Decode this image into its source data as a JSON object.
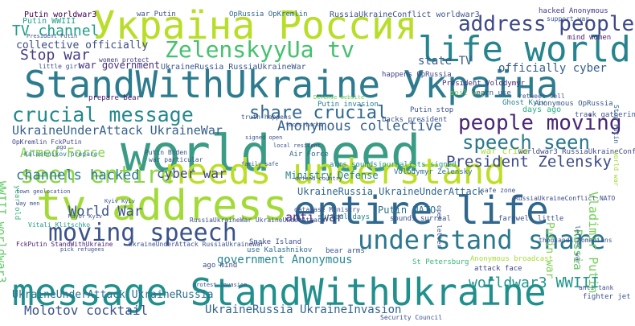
{
  "words": [
    {
      "text": "world need",
      "color": "#3b9c86"
    },
    {
      "text": "message StandWithUkraine",
      "color": "#21908d"
    },
    {
      "text": "StandWithUkraine Україна",
      "color": "#2c7b8e"
    },
    {
      "text": "needs understand",
      "color": "#bdde26"
    },
    {
      "text": "entire life",
      "color": "#30678d"
    },
    {
      "text": "tv address",
      "color": "#a2da37"
    },
    {
      "text": "Україна Россия",
      "color": "#b8de29"
    },
    {
      "text": "life world",
      "color": "#25848e"
    },
    {
      "text": "moving speech",
      "color": "#3b528b"
    },
    {
      "text": "understand share",
      "color": "#2a778e"
    },
    {
      "text": "ZelenskyyUa tv",
      "color": "#46c06f"
    },
    {
      "text": "address people",
      "color": "#3e4989"
    },
    {
      "text": "crucial message",
      "color": "#23888e"
    },
    {
      "text": "people moving",
      "color": "#482576"
    },
    {
      "text": "share crucial",
      "color": "#31688e"
    },
    {
      "text": "speech seen",
      "color": "#2a788e"
    },
    {
      "text": "seen entire",
      "color": "#8ed645"
    },
    {
      "text": "Anonymous collective",
      "color": "#34608d"
    },
    {
      "text": "President Zelensky",
      "color": "#3e4c8a"
    },
    {
      "text": "Vladimir Putin",
      "color": "#73d056"
    },
    {
      "text": "Stop war",
      "color": "#443b84"
    },
    {
      "text": "TV channel",
      "color": "#1f9e89"
    },
    {
      "text": "channels hacked",
      "color": "#2a788e"
    },
    {
      "text": "cyber war",
      "color": "#3f4889"
    },
    {
      "text": "Armed Force",
      "color": "#84d44b"
    },
    {
      "text": "UkraineUnderAttack UkraineWar",
      "color": "#355f8d"
    },
    {
      "text": "UkraineRussia UkraineUnderAttack",
      "color": "#31688e"
    },
    {
      "text": "World War",
      "color": "#3a548c"
    },
    {
      "text": "anti war",
      "color": "#472d7b"
    },
    {
      "text": "state TV",
      "color": "#38588c"
    },
    {
      "text": "Ministry Defense",
      "color": "#26818e"
    },
    {
      "text": "worldwar3 WWIII",
      "color": "#1f958b"
    },
    {
      "text": "Molotov cocktail",
      "color": "#3b528b"
    },
    {
      "text": "UkraineRussia UkraineInvasion",
      "color": "#32648e"
    },
    {
      "text": "UkraineUnderAttack UkraineRussia",
      "color": "#2d718e"
    },
    {
      "text": "collective officially",
      "color": "#3d4d8a"
    },
    {
      "text": "officially cyber",
      "color": "#355e8d"
    },
    {
      "text": "government Anonymous",
      "color": "#24868e"
    },
    {
      "text": "Putin NATO",
      "color": "#2d708e"
    },
    {
      "text": "Putin war",
      "color": "#7ad151"
    },
    {
      "text": "WWIII worldwar3",
      "color": "#5ec962"
    },
    {
      "text": "war government",
      "color": "#46307e"
    },
    {
      "text": "mind women",
      "color": "#481b6d"
    },
    {
      "text": "Russia",
      "color": "#63cb5f"
    },
    {
      "text": "Putin WWIII",
      "color": "#1fa187"
    },
    {
      "text": "war Putin",
      "color": "#3c4f8a"
    },
    {
      "text": "Putin worldwar3",
      "color": "#440154"
    },
    {
      "text": "OpRussia OpKremlin",
      "color": "#31688e"
    },
    {
      "text": "RussiaUkraineConflict worldwar3",
      "color": "#3b528b"
    },
    {
      "text": "hacked Anonymous",
      "color": "#443983"
    },
    {
      "text": "UkraineRussia RussiaUkraineWar",
      "color": "#39568c"
    },
    {
      "text": "President Volodymyr",
      "color": "#482878"
    },
    {
      "text": "happens OpRussia",
      "color": "#414487"
    },
    {
      "text": "soil way",
      "color": "#7fd34e"
    },
    {
      "text": "prepare bear",
      "color": "#48186a"
    },
    {
      "text": "Defense website",
      "color": "#6ccd5a"
    },
    {
      "text": "Putin invasion",
      "color": "#287c8e"
    },
    {
      "text": "Ghost Kyiv",
      "color": "#277f8e"
    },
    {
      "text": "days ago",
      "color": "#29af7f"
    },
    {
      "text": "Anonymous OpRussia",
      "color": "#38598c"
    },
    {
      "text": "track gatherings",
      "color": "#3b528b"
    },
    {
      "text": "war crime",
      "color": "#a8db34"
    },
    {
      "text": "worldwar3 RussiaUkraineConflict",
      "color": "#3f4788"
    },
    {
      "text": "Kalashnikov prepare",
      "color": "#2b748e"
    },
    {
      "text": "OpKremlin FckPutin",
      "color": "#404588"
    },
    {
      "text": "Air Force",
      "color": "#33638d"
    },
    {
      "text": "family safe",
      "color": "#3a538b"
    },
    {
      "text": "arms sounds",
      "color": "#24878e"
    },
    {
      "text": "defend country",
      "color": "#3c508b"
    },
    {
      "text": "journalists signed",
      "color": "#1f9a8a"
    },
    {
      "text": "Volodymyr Zelensky",
      "color": "#2f6c8e"
    },
    {
      "text": "Snake Island",
      "color": "#3d4e8a"
    },
    {
      "text": "use Kalashnikov",
      "color": "#2e6f8e"
    },
    {
      "text": "bear arms",
      "color": "#39558c"
    },
    {
      "text": "surreal days",
      "color": "#25858e"
    },
    {
      "text": "sounds surreal",
      "color": "#3b518b"
    },
    {
      "text": "RussiaUkraineConflict NATO",
      "color": "#3e4a89"
    },
    {
      "text": "RussiaUkraineWar UkraineUnderAttack",
      "color": "#3d4e8a"
    },
    {
      "text": "UkraineUnderAttack RussiaUkraineWar",
      "color": "#3b528b"
    },
    {
      "text": "FckPutin StandWithUkraine",
      "color": "#481f70"
    },
    {
      "text": "Vitali Klitschko",
      "color": "#1e9c89"
    },
    {
      "text": "Mayor Kyiv",
      "color": "#38588c"
    },
    {
      "text": "ago mind",
      "color": "#3e4a89"
    },
    {
      "text": "Anonymous broadcast",
      "color": "#a5db36"
    },
    {
      "text": "attack face",
      "color": "#3e4989"
    },
    {
      "text": "St Petersburg",
      "color": "#35b779"
    },
    {
      "text": "anti tank",
      "color": "#3a548c"
    },
    {
      "text": "fighter jet",
      "color": "#3a548c"
    },
    {
      "text": "letter war",
      "color": "#39568c"
    },
    {
      "text": "little girl",
      "color": "#3c4f8a"
    },
    {
      "text": "women protect",
      "color": "#424086"
    },
    {
      "text": "Stop Putin",
      "color": "#32658e"
    },
    {
      "text": "world war",
      "color": "#a2da37"
    },
    {
      "text": "year old",
      "color": "#35b779"
    },
    {
      "text": "ago",
      "color": "#3b528b"
    },
    {
      "text": "way men",
      "color": "#3b528b"
    },
    {
      "text": "safe zone",
      "color": "#3b528b"
    },
    {
      "text": "learn use",
      "color": "#3b528b"
    },
    {
      "text": "backs president",
      "color": "#3b528b"
    },
    {
      "text": "faces backs",
      "color": "#3b528b"
    },
    {
      "text": "truth happens",
      "color": "#3b528b"
    },
    {
      "text": "open letter",
      "color": "#3b528b"
    },
    {
      "text": "Kyiv Kyiv",
      "color": "#3b528b"
    },
    {
      "text": "town geolocation",
      "color": "#3b528b"
    },
    {
      "text": "database Ministry",
      "color": "#3b528b"
    },
    {
      "text": "pick refugees",
      "color": "#3b528b"
    },
    {
      "text": "protest invasion",
      "color": "#3b528b"
    },
    {
      "text": "thousands Romanians",
      "color": "#3b528b"
    },
    {
      "text": "farewell little",
      "color": "#3b528b"
    },
    {
      "text": "retweet tell",
      "color": "#3b528b"
    },
    {
      "text": "local resident",
      "color": "#3b528b"
    },
    {
      "text": "Putin Biden",
      "color": "#3b528b"
    },
    {
      "text": "war particular",
      "color": "#3b528b"
    },
    {
      "text": "signed open",
      "color": "#3b528b"
    },
    {
      "text": "Security Council",
      "color": "#3b528b"
    },
    {
      "text": "President Putin",
      "color": "#3b528b"
    },
    {
      "text": "support war",
      "color": "#3b528b"
    },
    {
      "text": "Putin stop",
      "color": "#3b528b"
    }
  ]
}
